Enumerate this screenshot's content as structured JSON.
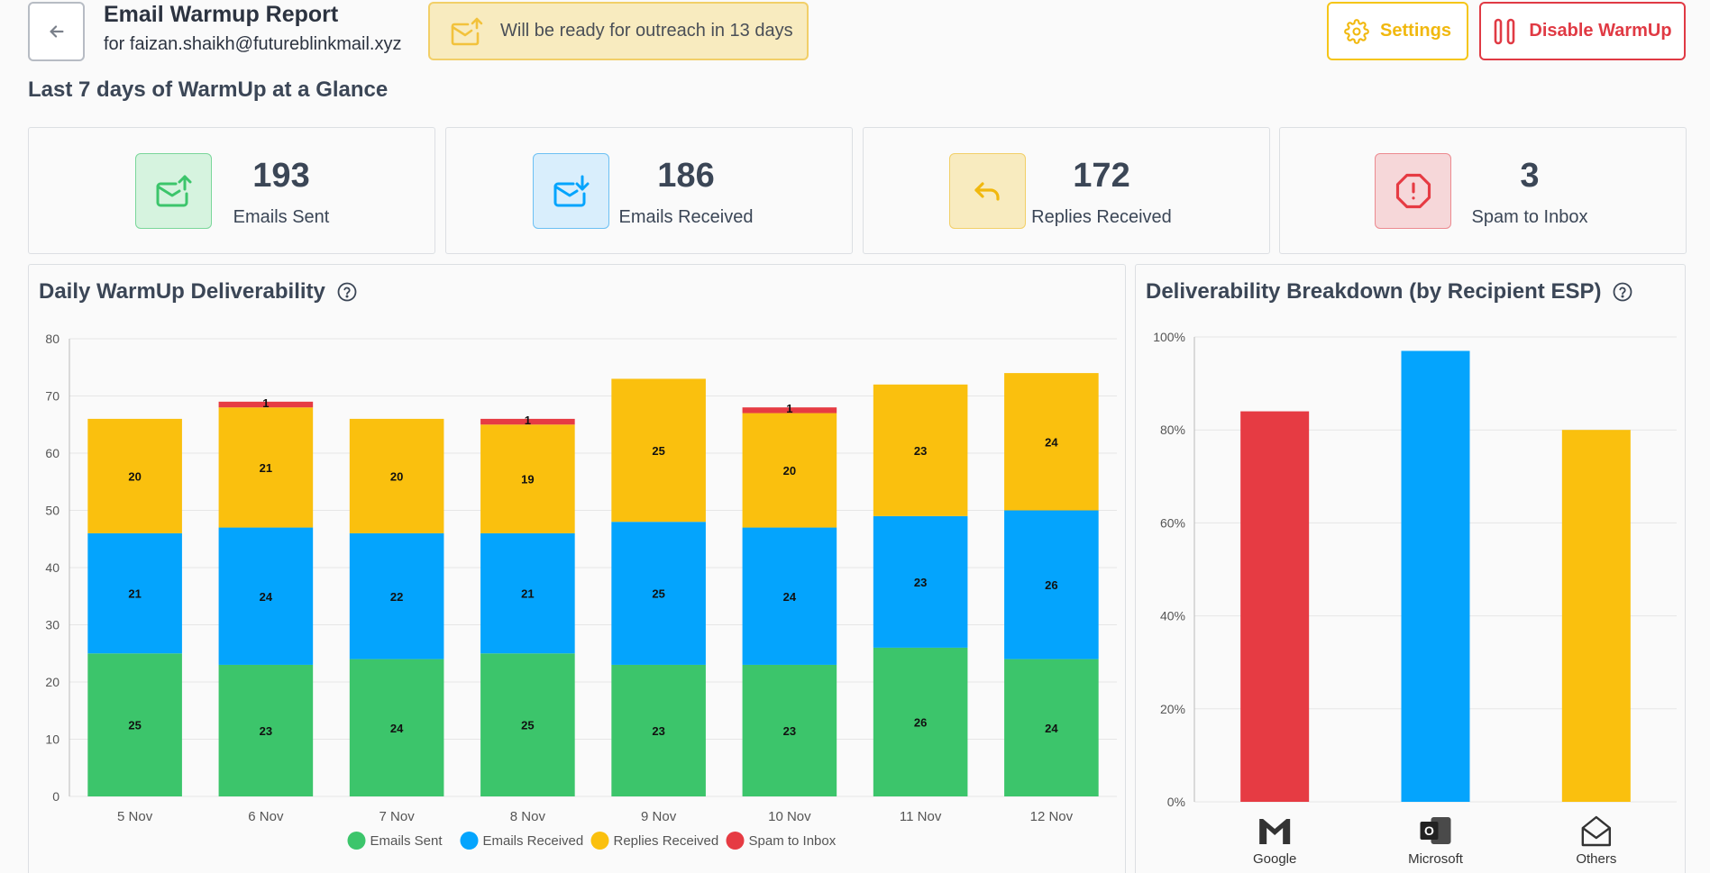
{
  "header": {
    "title": "Email Warmup Report",
    "subtitle": "for faizan.shaikh@futureblinkmail.xyz",
    "ready_text": "Will be ready for outreach in 13 days",
    "settings_label": "Settings",
    "disable_label": "Disable WarmUp"
  },
  "section_title": "Last 7 days of WarmUp at a Glance",
  "stats": [
    {
      "value": "193",
      "label": "Emails Sent"
    },
    {
      "value": "186",
      "label": "Emails Received"
    },
    {
      "value": "172",
      "label": "Replies Received"
    },
    {
      "value": "3",
      "label": "Spam to Inbox"
    }
  ],
  "colors": {
    "green": "#3cc56b",
    "blue": "#04a4fd",
    "yellow": "#fac00e",
    "red": "#e63b43",
    "grid": "#e6e6e6",
    "axis": "#555555"
  },
  "panels": {
    "daily_title": "Daily WarmUp Deliverability",
    "breakdown_title": "Deliverability Breakdown (by Recipient ESP)"
  },
  "chart_data": [
    {
      "type": "bar",
      "stacked": true,
      "title": "Daily WarmUp Deliverability",
      "categories": [
        "5 Nov",
        "6 Nov",
        "7 Nov",
        "8 Nov",
        "9 Nov",
        "10 Nov",
        "11 Nov",
        "12 Nov"
      ],
      "ylim": [
        0,
        80
      ],
      "yticks": [
        0,
        10,
        20,
        30,
        40,
        50,
        60,
        70,
        80
      ],
      "series": [
        {
          "name": "Emails Sent",
          "color": "#3cc56b",
          "values": [
            25,
            23,
            24,
            25,
            23,
            23,
            26,
            24
          ]
        },
        {
          "name": "Emails Received",
          "color": "#04a4fd",
          "values": [
            21,
            24,
            22,
            21,
            25,
            24,
            23,
            26
          ]
        },
        {
          "name": "Replies Received",
          "color": "#fac00e",
          "values": [
            20,
            21,
            20,
            19,
            25,
            20,
            23,
            24
          ]
        },
        {
          "name": "Spam to Inbox",
          "color": "#e63b43",
          "values": [
            0,
            1,
            0,
            1,
            0,
            1,
            0,
            0
          ]
        }
      ],
      "legend": "bottom"
    },
    {
      "type": "bar",
      "title": "Deliverability Breakdown (by Recipient ESP)",
      "categories": [
        "Google",
        "Microsoft",
        "Others"
      ],
      "values": [
        84,
        97,
        80
      ],
      "colors": [
        "#e63b43",
        "#04a4fd",
        "#fac00e"
      ],
      "ylim": [
        0,
        100
      ],
      "yticks": [
        "0%",
        "20%",
        "40%",
        "60%",
        "80%",
        "100%"
      ]
    }
  ]
}
